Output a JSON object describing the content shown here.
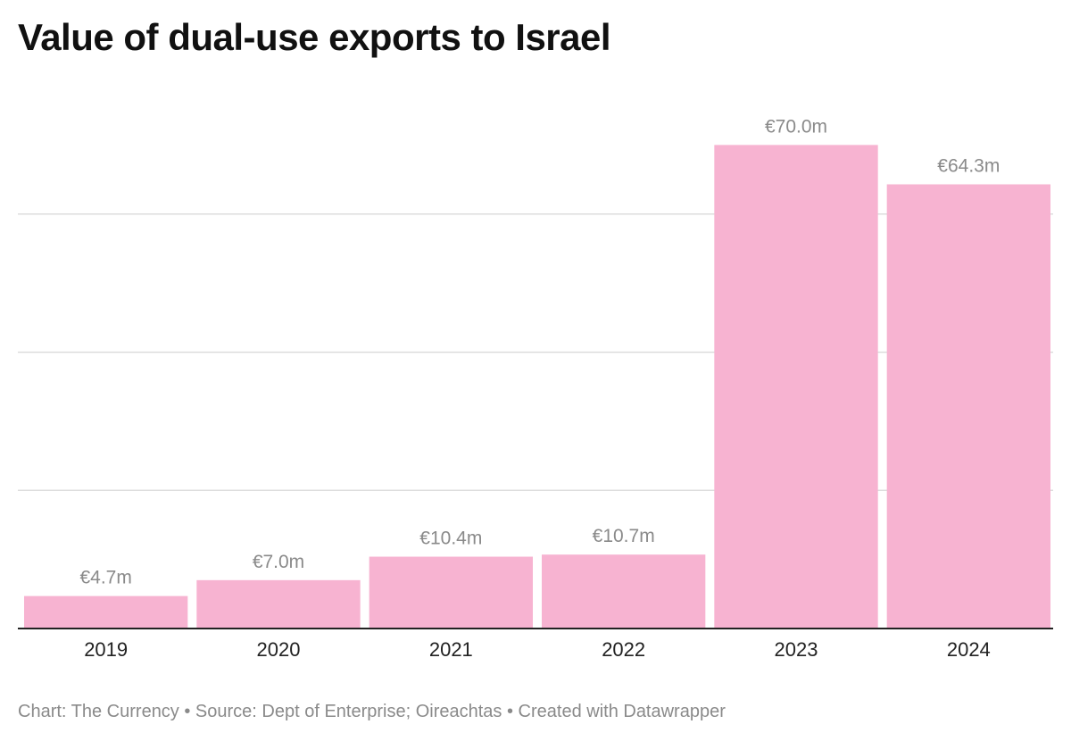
{
  "chart_data": {
    "type": "bar",
    "title": "Value of dual-use exports to Israel",
    "categories": [
      "2019",
      "2020",
      "2021",
      "2022",
      "2023",
      "2024"
    ],
    "values": [
      4.7,
      7.0,
      10.4,
      10.7,
      70.0,
      64.3
    ],
    "value_labels": [
      "€4.7m",
      "€7.0m",
      "€10.4m",
      "€10.7m",
      "€70.0m",
      "€64.3m"
    ],
    "unit": "€ millions",
    "xlabel": "",
    "ylabel": "",
    "ylim": [
      0,
      80
    ],
    "gridlines": [
      20,
      40,
      60
    ],
    "y_tick_labels_shown": false,
    "grid": true,
    "legend": "none"
  },
  "colors": {
    "bar": "#f7b3d1",
    "value_label": "#8a8a8a",
    "gridline": "#dddddd",
    "axis": "#222222"
  },
  "footer": {
    "text": "Chart: The Currency • Source: Dept of Enterprise; Oireachtas • Created with Datawrapper"
  }
}
